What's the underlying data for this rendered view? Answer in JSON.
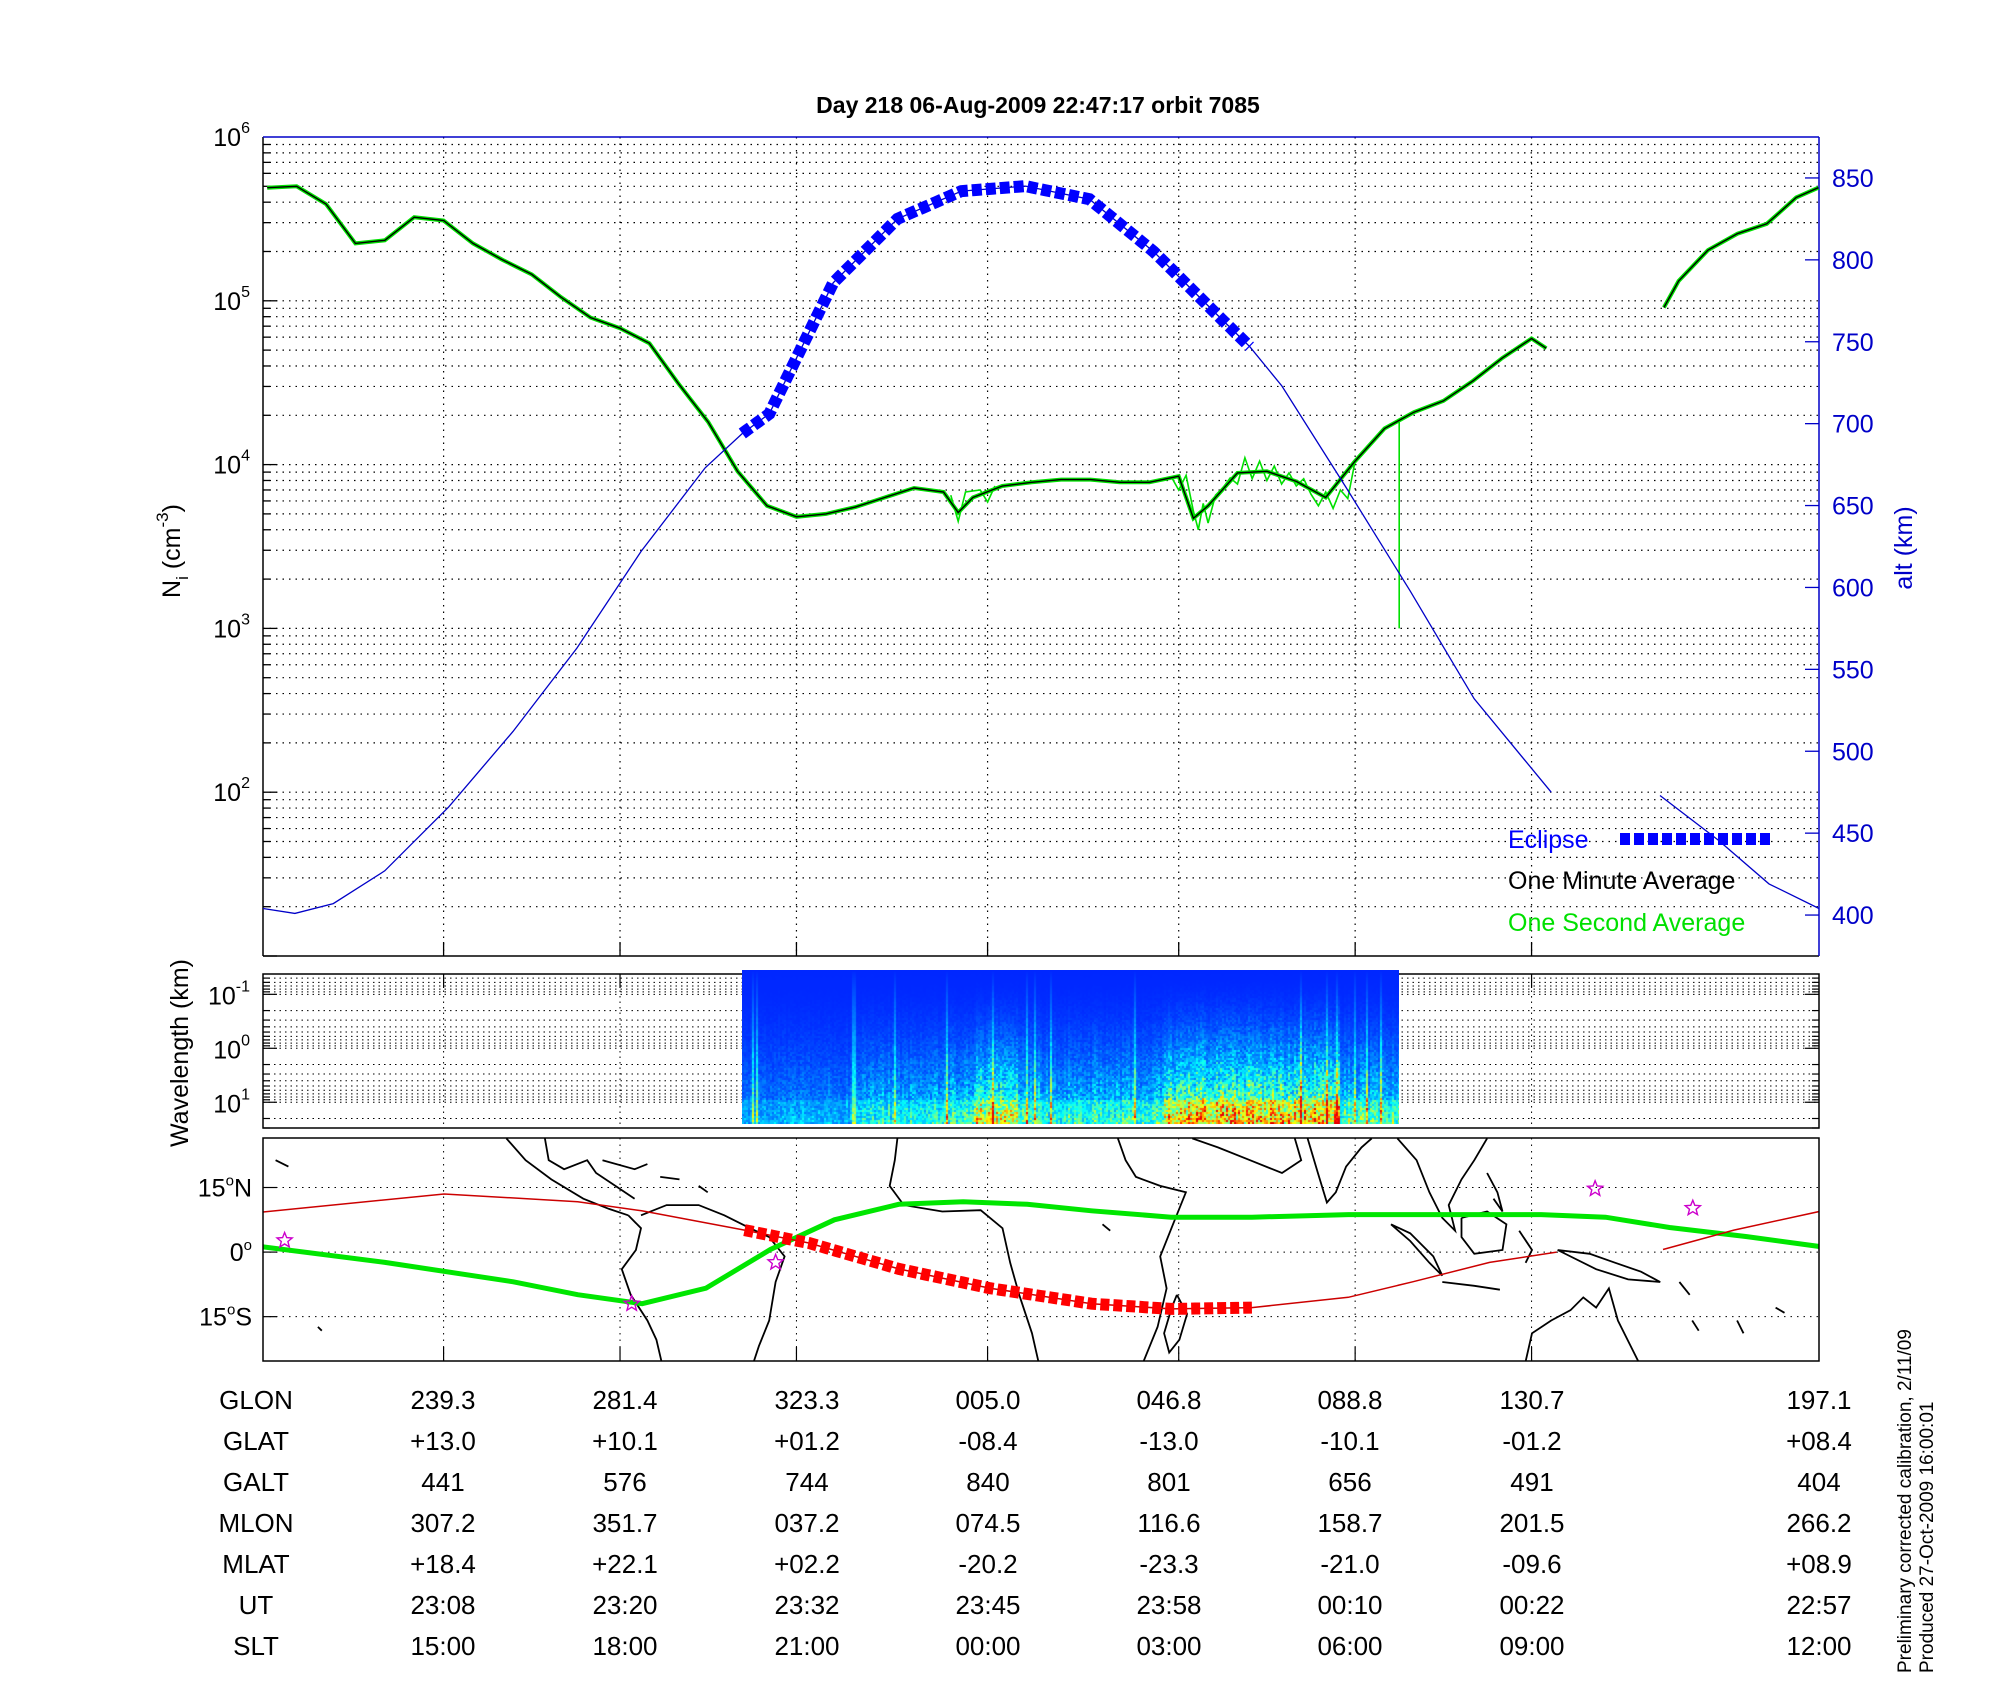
{
  "title": "Day 218  06-Aug-2009 22:47:17   orbit 7085",
  "footnote": {
    "line1": "Preliminary corrected calibration, 2/11/09",
    "line2": "Produced 27-Oct-2009 16:00:01"
  },
  "colors": {
    "one_minute": "#000000",
    "one_second": "#00e000",
    "altitude": "#0000c8",
    "eclipse": "#0000ff",
    "track": "#cc0000",
    "track_eclipse": "#ff0000",
    "dip_equator": "#00e600",
    "stars": "#cc00cc",
    "right_axis": "#0000c8"
  },
  "chart_data": [
    {
      "type": "line",
      "panel": "density",
      "title": "Day 218  06-Aug-2009 22:47:17   orbit 7085",
      "ylabel": "N",
      "ylabel_sub": "i",
      "ylabel_unit": " (cm",
      "ylabel_exp": "-3",
      "ylabel_close": ")",
      "y2label": "alt (km)",
      "xlim": [
        "22:55:43",
        "00:41:33"
      ],
      "xticks": [
        "23:08",
        "23:20",
        "23:32",
        "23:45",
        "23:58",
        "00:10",
        "00:22"
      ],
      "ylim": [
        10,
        1000000
      ],
      "yscale": "log",
      "ytick_base": "10",
      "ytick_exponents": [
        "2",
        "3",
        "4",
        "5",
        "6"
      ],
      "y2lim": [
        375,
        875
      ],
      "y2ticks": [
        "400",
        "450",
        "500",
        "550",
        "600",
        "650",
        "700",
        "750",
        "800",
        "850"
      ],
      "grid": true,
      "legend": {
        "placement": "bottom-right",
        "eclipse": "Eclipse",
        "one_minute": "One Minute Average",
        "one_second": "One Second Average"
      },
      "eclipse_interval": [
        "23:28:19",
        "00:02:50"
      ],
      "series": [
        {
          "name": "One Minute Average",
          "axis": "left",
          "points": [
            [
              "22:56",
              490000
            ],
            [
              "22:58",
              500000
            ],
            [
              "23:00",
              390000
            ],
            [
              "23:02",
              224000
            ],
            [
              "23:04",
              234000
            ],
            [
              "23:06",
              324000
            ],
            [
              "23:08",
              309000
            ],
            [
              "23:10",
              224000
            ],
            [
              "23:12",
              178000
            ],
            [
              "23:14",
              145000
            ],
            [
              "23:16",
              105000
            ],
            [
              "23:18",
              79000
            ],
            [
              "23:20",
              68000
            ],
            [
              "23:22",
              55000
            ],
            [
              "23:24",
              31000
            ],
            [
              "23:26",
              18200
            ],
            [
              "23:28",
              9100
            ],
            [
              "23:30",
              5600
            ],
            [
              "23:32",
              4800
            ],
            [
              "23:34",
              5000
            ],
            [
              "23:36",
              5500
            ],
            [
              "23:38",
              6300
            ],
            [
              "23:40",
              7200
            ],
            [
              "23:42",
              6800
            ],
            [
              "23:43",
              5100
            ],
            [
              "23:44",
              6300
            ],
            [
              "23:46",
              7400
            ],
            [
              "23:48",
              7800
            ],
            [
              "23:50",
              8100
            ],
            [
              "23:52",
              8100
            ],
            [
              "23:54",
              7800
            ],
            [
              "23:56",
              7800
            ],
            [
              "23:58",
              8500
            ],
            [
              "23:59",
              4700
            ],
            [
              "00:00",
              5600
            ],
            [
              "00:02",
              8900
            ],
            [
              "00:04",
              9100
            ],
            [
              "00:06",
              7900
            ],
            [
              "00:08",
              6300
            ],
            [
              "00:10",
              10500
            ],
            [
              "00:12",
              16600
            ],
            [
              "00:14",
              20900
            ],
            [
              "00:16",
              24500
            ],
            [
              "00:18",
              32400
            ],
            [
              "00:20",
              44700
            ],
            [
              "00:22",
              58900
            ],
            [
              "00:23",
              51300
            ],
            null,
            [
              "00:31",
              91000
            ],
            [
              "00:32",
              132000
            ],
            [
              "00:34",
              204000
            ],
            [
              "00:36",
              257000
            ],
            [
              "00:38",
              295000
            ],
            [
              "00:40",
              427000
            ],
            [
              "00:41:30",
              490000
            ]
          ]
        },
        {
          "name": "One Second Average",
          "axis": "left",
          "points": [
            [
              "23:42:30",
              6500
            ],
            [
              "23:43:00",
              4500
            ],
            [
              "23:43:30",
              6800
            ],
            [
              "23:44:30",
              7000
            ],
            [
              "23:45:00",
              5900
            ],
            [
              "23:45:30",
              7400
            ],
            null,
            [
              "23:57:30",
              8400
            ],
            [
              "23:58:00",
              7000
            ],
            [
              "23:58:30",
              8600
            ],
            [
              "23:59:00",
              5200
            ],
            [
              "23:59:20",
              4000
            ],
            [
              "23:59:40",
              5800
            ],
            [
              "00:00:00",
              4400
            ],
            [
              "00:00:30",
              6500
            ],
            [
              "00:01:00",
              7200
            ],
            [
              "00:01:30",
              8300
            ],
            [
              "00:02:00",
              7600
            ],
            [
              "00:02:30",
              11000
            ],
            [
              "00:03:00",
              8200
            ],
            [
              "00:03:30",
              10500
            ],
            [
              "00:04:00",
              8000
            ],
            [
              "00:04:30",
              9800
            ],
            [
              "00:05:00",
              7600
            ],
            [
              "00:05:30",
              8900
            ],
            [
              "00:06:00",
              7400
            ],
            [
              "00:06:30",
              8200
            ],
            [
              "00:07:00",
              6600
            ],
            [
              "00:07:30",
              5600
            ],
            [
              "00:08:00",
              6800
            ],
            [
              "00:08:30",
              5400
            ],
            [
              "00:09:00",
              7000
            ],
            [
              "00:09:30",
              6200
            ],
            [
              "00:10:00",
              10500
            ],
            null,
            [
              "00:13:00",
              19000
            ],
            [
              "00:13:00",
              1000
            ]
          ]
        },
        {
          "name": "alt (km)",
          "axis": "right",
          "points": [
            [
              "22:55:43",
              404
            ],
            [
              "22:57:53",
              401
            ],
            [
              "23:00:30",
              407
            ],
            [
              "23:04:00",
              427
            ],
            [
              "23:08:21",
              466
            ],
            [
              "23:12:43",
              512
            ],
            [
              "23:17:04",
              563
            ],
            [
              "23:21:26",
              622
            ],
            [
              "23:25:47",
              673
            ],
            [
              "23:28:19",
              694
            ],
            [
              "23:30:09",
              706
            ],
            [
              "23:34:30",
              786
            ],
            [
              "23:38:52",
              825
            ],
            [
              "23:43:13",
              842
            ],
            [
              "23:47:35",
              845
            ],
            [
              "23:51:56",
              837
            ],
            [
              "23:56:18",
              805
            ],
            [
              "00:00:40",
              766
            ],
            [
              "00:02:50",
              747
            ],
            [
              "00:05:01",
              723
            ],
            [
              "00:09:23",
              661
            ],
            [
              "00:13:44",
              598
            ],
            [
              "00:18:06",
              532
            ],
            [
              "00:23:20",
              475
            ],
            null,
            [
              "00:30:44",
              473
            ],
            [
              "00:34:40",
              446
            ],
            [
              "00:38:09",
              419
            ],
            [
              "00:41:33",
              404
            ]
          ]
        }
      ]
    },
    {
      "type": "heatmap",
      "panel": "spectrogram",
      "ylabel": "Wavelength (km)",
      "yscale": "log",
      "ylim": [
        0.042,
        30
      ],
      "yreversed": true,
      "ytick_base": "10",
      "ytick_exponents": [
        "-1",
        "0",
        "1"
      ],
      "colormap": "jet",
      "data_interval": [
        "23:28:19",
        "00:13:02"
      ],
      "relative_intensity": [
        [
          "23:28:19",
          "23:36",
          0.25
        ],
        [
          "23:36",
          "23:42",
          0.4
        ],
        [
          "23:42",
          "23:44",
          0.45
        ],
        [
          "23:44",
          "23:47",
          0.75
        ],
        [
          "23:47",
          "23:57",
          0.45
        ],
        [
          "23:57",
          "00:09",
          0.9
        ],
        [
          "00:09",
          "00:13:02",
          0.5
        ]
      ]
    },
    {
      "type": "scatter",
      "panel": "map",
      "lat_ticks": [
        "15",
        "0",
        "15"
      ],
      "lat_tick_suffix": [
        "N",
        "",
        "S"
      ],
      "lon_start": 197.4,
      "latlim": [
        -25.3,
        26.5
      ],
      "track": [
        [
          197.4,
          9.3
        ],
        [
          239.3,
          13.5
        ],
        [
          270.2,
          11.7
        ],
        [
          285.0,
          9.6
        ],
        [
          308.8,
          5.1
        ],
        [
          323.7,
          2.1
        ],
        [
          344.5,
          -3.9
        ],
        [
          5.6,
          -8.4
        ],
        [
          29.1,
          -12.0
        ],
        [
          47.5,
          -13.2
        ],
        [
          66.2,
          -12.9
        ],
        [
          88.5,
          -10.5
        ],
        [
          103.4,
          -6.9
        ],
        [
          121.2,
          -2.4
        ],
        [
          136.7,
          0.0
        ],
        null,
        [
          161.3,
          0.6
        ],
        [
          177.7,
          5.1
        ],
        [
          198.2,
          9.6
        ]
      ],
      "track_eclipse_lon": [
        308.8,
        66.2
      ],
      "dip_equator": [
        [
          197.4,
          1.2
        ],
        [
          225.6,
          -2.4
        ],
        [
          255.3,
          -6.9
        ],
        [
          270.2,
          -9.9
        ],
        [
          285.1,
          -12.0
        ],
        [
          299.9,
          -8.4
        ],
        [
          314.8,
          0.6
        ],
        [
          329.6,
          7.5
        ],
        [
          344.5,
          11.1
        ],
        [
          359.4,
          11.7
        ],
        [
          14.2,
          11.1
        ],
        [
          29.1,
          9.6
        ],
        [
          47.5,
          8.1
        ],
        [
          66.2,
          8.1
        ],
        [
          88.5,
          8.7
        ],
        [
          103.4,
          8.7
        ],
        [
          133.1,
          8.7
        ],
        [
          148.0,
          8.1
        ],
        [
          162.8,
          5.7
        ],
        [
          180.7,
          3.6
        ],
        [
          198.2,
          1.2
        ]
      ],
      "stars": [
        [
          202.4,
          2.7
        ],
        [
          282.7,
          -12.0
        ],
        [
          316.0,
          -2.4
        ],
        [
          145.6,
          14.7
        ],
        [
          168.2,
          10.2
        ]
      ]
    }
  ],
  "ephemeris": {
    "labels": [
      "GLON",
      "GLAT",
      "GALT",
      "MLON",
      "MLAT",
      "UT",
      "SLT"
    ],
    "columns": [
      [
        "239.3",
        "+13.0",
        "441",
        "307.2",
        "+18.4",
        "23:08",
        "15:00"
      ],
      [
        "281.4",
        "+10.1",
        "576",
        "351.7",
        "+22.1",
        "23:20",
        "18:00"
      ],
      [
        "323.3",
        "+01.2",
        "744",
        "037.2",
        "+02.2",
        "23:32",
        "21:00"
      ],
      [
        "005.0",
        "-08.4",
        "840",
        "074.5",
        "-20.2",
        "23:45",
        "00:00"
      ],
      [
        "046.8",
        "-13.0",
        "801",
        "116.6",
        "-23.3",
        "23:58",
        "03:00"
      ],
      [
        "088.8",
        "-10.1",
        "656",
        "158.7",
        "-21.0",
        "00:10",
        "06:00"
      ],
      [
        "130.7",
        "-01.2",
        "491",
        "201.5",
        "-09.6",
        "00:22",
        "09:00"
      ],
      [
        "197.1",
        "+08.4",
        "404",
        "266.2",
        "+08.9",
        "22:57",
        "12:00"
      ]
    ]
  }
}
